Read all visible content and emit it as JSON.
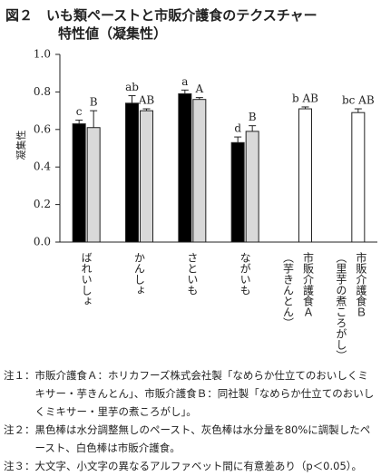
{
  "chart_data": {
    "type": "bar",
    "title": [
      "図２　いも類ペーストと市販介護食のテクスチャー",
      "特性値（凝集性）"
    ],
    "y_label": "凝集性",
    "categories": [
      "ばれいしょ",
      "かんしょ",
      "さといも",
      "ながいも",
      "市販介護食Ａ\n（芋きんとん）",
      "市販介護食Ｂ\n（里芋の煮ころがし）"
    ],
    "series": [
      {
        "color": "#000000",
        "values": [
          0.63,
          0.74,
          0.79,
          0.53,
          null,
          null
        ],
        "errors": [
          0.02,
          0.04,
          0.02,
          0.03,
          null,
          null
        ],
        "letters": [
          "c",
          "ab",
          "a",
          "d",
          null,
          null
        ]
      },
      {
        "color": "#d9d9d9",
        "values": [
          0.61,
          0.7,
          0.76,
          0.59,
          null,
          null
        ],
        "errors": [
          0.09,
          0.01,
          0.01,
          0.03,
          null,
          null
        ],
        "letters": [
          "B",
          "AB",
          "A",
          "B",
          null,
          null
        ]
      },
      {
        "color": "#ffffff",
        "values": [
          null,
          null,
          null,
          null,
          0.71,
          0.69
        ],
        "errors": [
          null,
          null,
          null,
          null,
          0.01,
          0.02
        ],
        "letters": [
          null,
          null,
          null,
          null,
          "b AB",
          "bc AB"
        ]
      }
    ],
    "ylim": [
      0,
      1
    ],
    "yticks": [
      {
        "value": 0,
        "label": "0.0"
      },
      0.2,
      0.4,
      0.6,
      0.8,
      {
        "value": 1,
        "label": "1.0"
      }
    ],
    "notes": [
      {
        "label": "注１：",
        "text": "市販介護食Ａ：ホリカフーズ株式会社製「なめらか仕立てのおいしくミキサー・芋きんとん」、市販介護食Ｂ：同社製「なめらか仕立てのおいしくミキサー・里芋の煮ころがし」。"
      },
      {
        "label": "注２：",
        "text": "黒色棒は水分調整無しのペースト、灰色棒は水分量を80%に調製したペースト、白色棒は市販介護食。"
      },
      {
        "label": "注３：",
        "text": "大文字、小文字の異なるアルファベット間に有意差あり（p＜0.05）。"
      }
    ]
  }
}
